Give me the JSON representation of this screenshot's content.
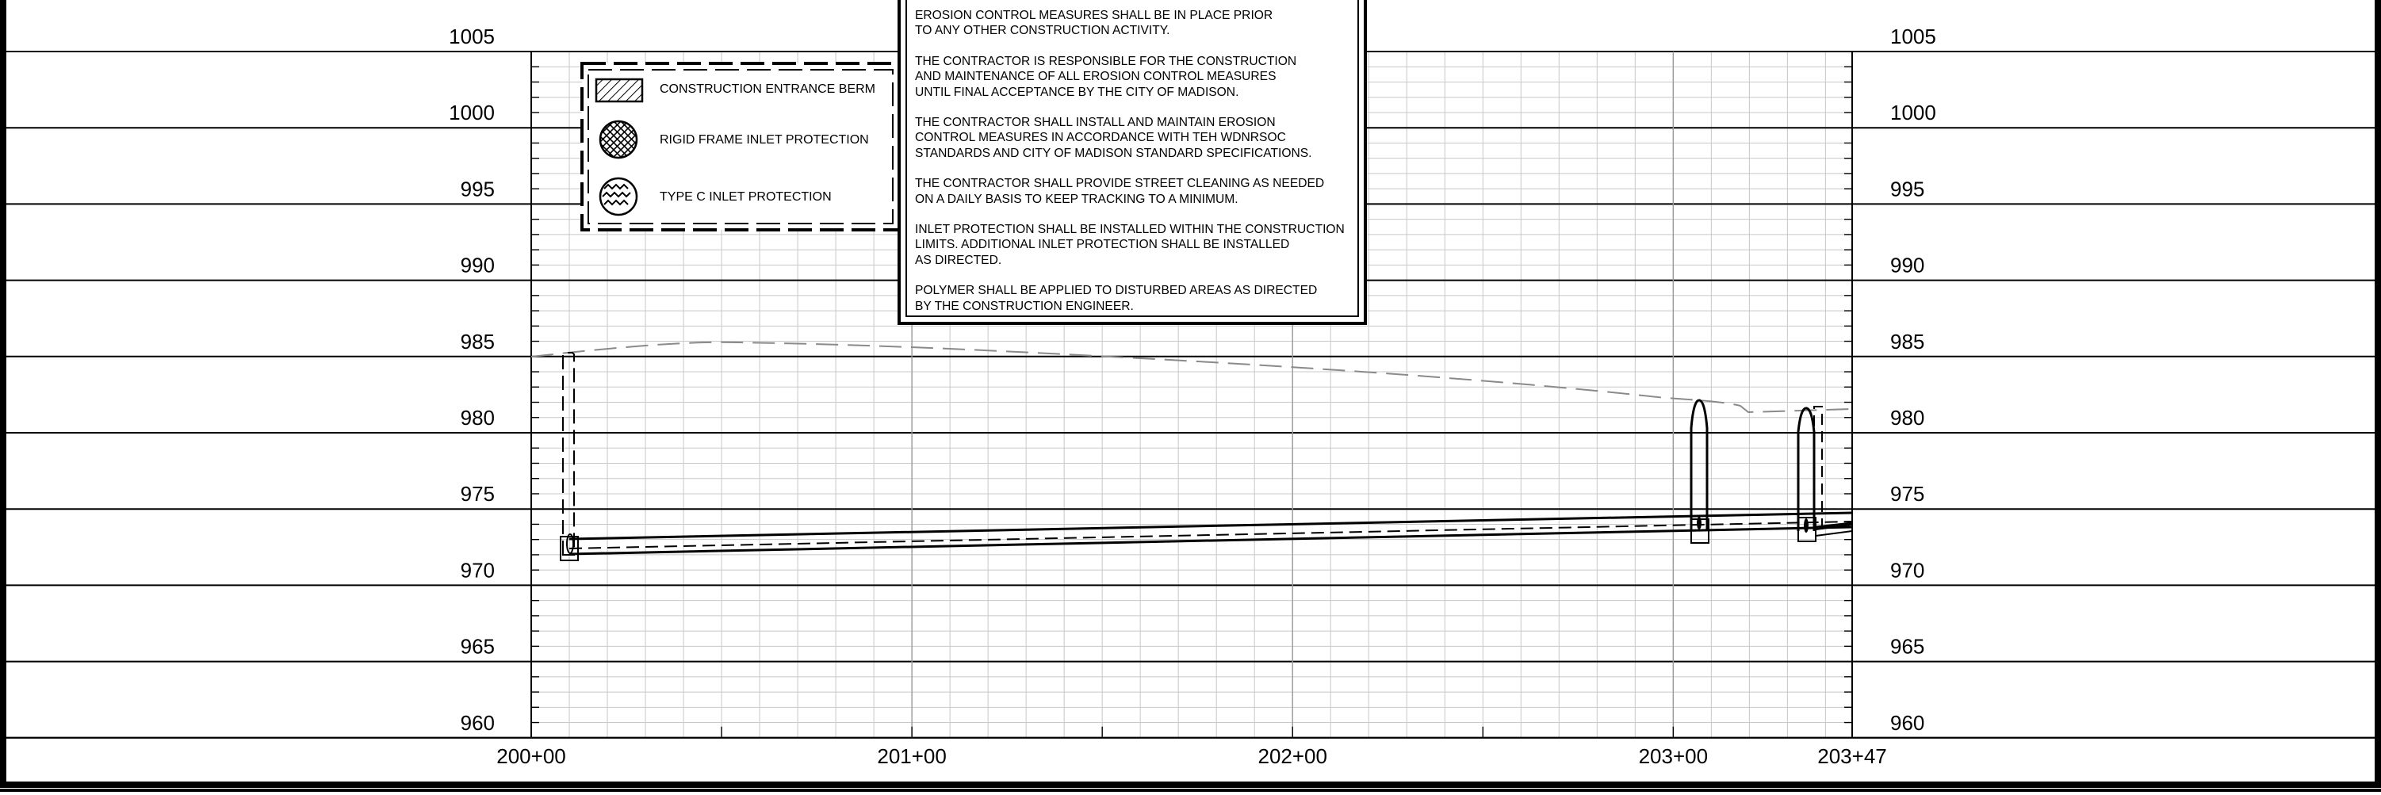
{
  "drawing": {
    "type": "profile",
    "elevation_labels_left": [
      "1005",
      "1000",
      "995",
      "990",
      "985",
      "980",
      "975",
      "970",
      "965",
      "960"
    ],
    "elevation_labels_right": [
      "1005",
      "1000",
      "995",
      "990",
      "985",
      "980",
      "975",
      "970",
      "965",
      "960"
    ],
    "station_labels": [
      "200+00",
      "201+00",
      "202+00",
      "203+00",
      "203+47"
    ],
    "elevation_range": [
      960,
      1005
    ],
    "station_range": [
      20000,
      20347
    ]
  },
  "legend": {
    "items": [
      {
        "label": "CONSTRUCTION ENTRANCE BERM",
        "icon": "hatch-square-icon"
      },
      {
        "label": "RIGID FRAME INLET PROTECTION",
        "icon": "crosshatch-circle-icon"
      },
      {
        "label": "TYPE C INLET PROTECTION",
        "icon": "zigzag-circle-icon"
      }
    ]
  },
  "notes": [
    "EROSION CONTROL MEASURES SHALL BE IN PLACE PRIOR\nTO ANY OTHER CONSTRUCTION ACTIVITY.",
    "THE CONTRACTOR IS RESPONSIBLE FOR THE CONSTRUCTION\nAND MAINTENANCE OF ALL EROSION CONTROL MEASURES\nUNTIL FINAL ACCEPTANCE BY THE CITY OF MADISON.",
    "THE CONTRACTOR SHALL INSTALL AND MAINTAIN EROSION\nCONTROL MEASURES IN ACCORDANCE WITH TEH WDNRSOC\nSTANDARDS AND CITY OF MADISON STANDARD SPECIFICATIONS.",
    "THE CONTRACTOR SHALL PROVIDE STREET CLEANING AS NEEDED\nON A DAILY BASIS TO KEEP TRACKING TO A MINIMUM.",
    "INLET PROTECTION SHALL BE INSTALLED WITHIN THE CONSTRUCTION\nLIMITS.  ADDITIONAL INLET PROTECTION SHALL BE INSTALLED\nAS DIRECTED.",
    "POLYMER SHALL BE APPLIED TO DISTURBED AREAS AS DIRECTED\nBY THE CONSTRUCTION ENGINEER."
  ]
}
